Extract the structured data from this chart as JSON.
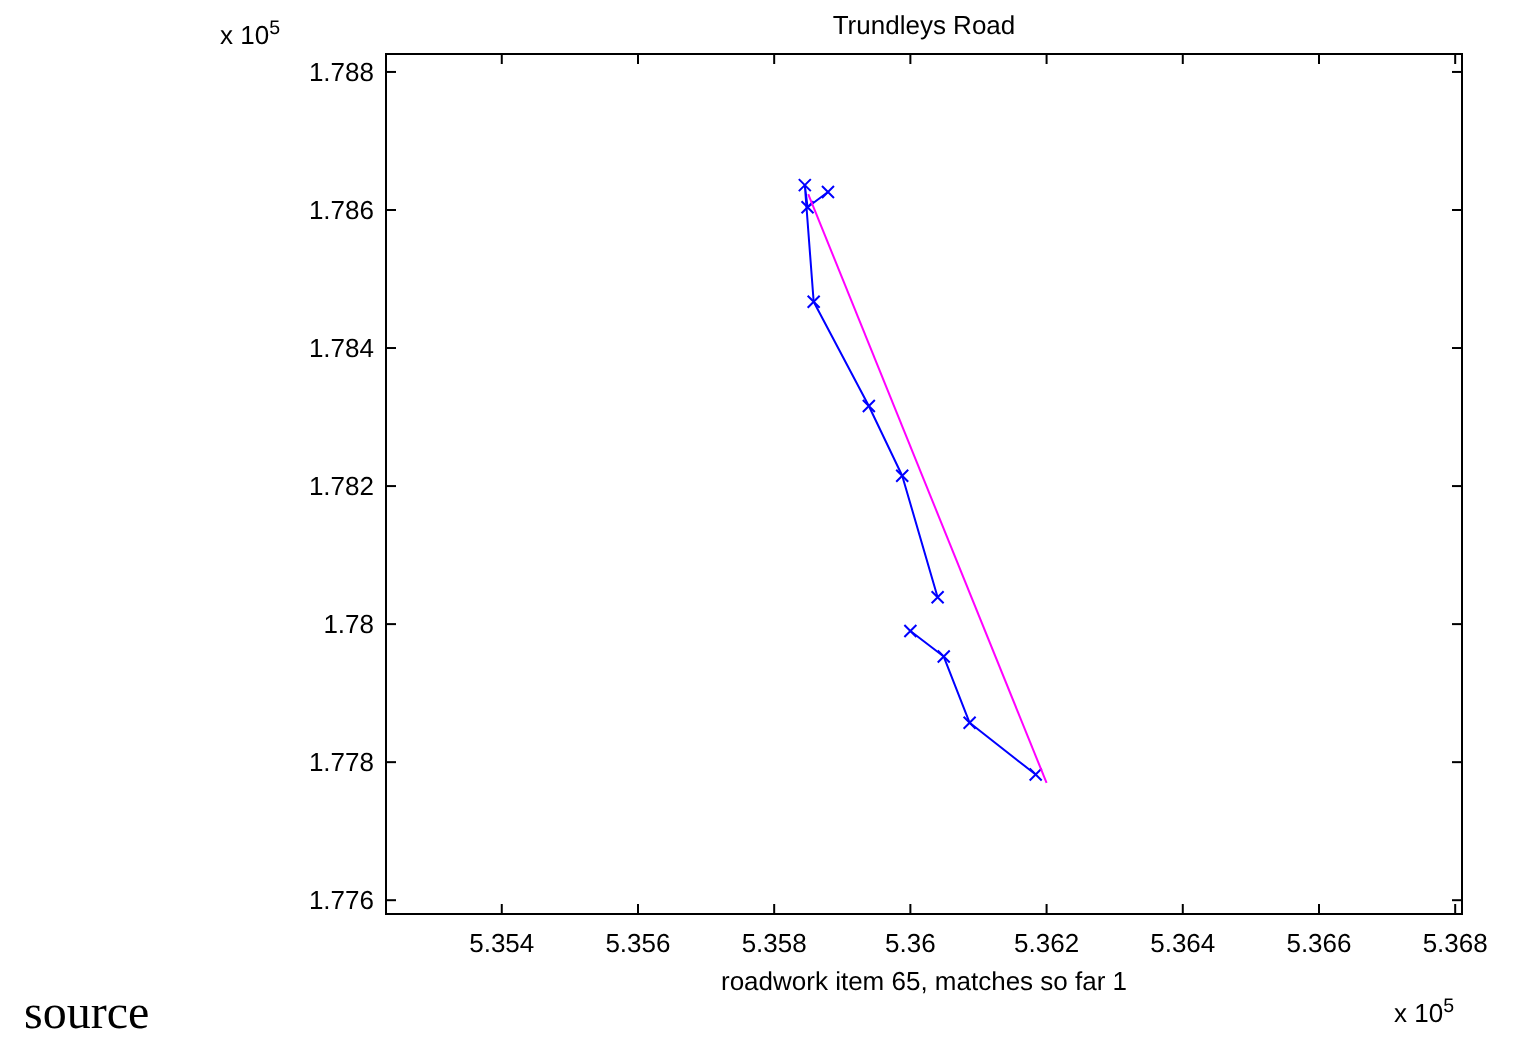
{
  "chart_data": {
    "type": "line",
    "title": "Trundleys Road",
    "xlabel": "roadwork item 65, matches so far 1",
    "annotations": [
      "x 10$^{5}$",
      "x 10$^{5}$",
      "source"
    ],
    "xlim": [
      5.3523,
      5.3681
    ],
    "ylim": [
      1.7758,
      1.78826
    ],
    "xticks": [
      5.354,
      5.356,
      5.358,
      5.36,
      5.362,
      5.364,
      5.366,
      5.368
    ],
    "yticks": [
      1.776,
      1.778,
      1.78,
      1.782,
      1.784,
      1.786,
      1.788
    ],
    "grid": false,
    "series": [
      {
        "color": "#0000ff",
        "marker": "cross",
        "line_style": "solid",
        "x": [
          5.35879,
          5.35849,
          5.35845,
          5.35858,
          5.35939,
          5.35988,
          5.3604,
          null,
          5.36,
          5.36049,
          5.36087,
          5.36184
        ],
        "values": [
          1.78626,
          1.78604,
          1.78636,
          1.78467,
          1.78316,
          1.78215,
          1.78039,
          null,
          1.7799,
          1.77953,
          1.77857,
          1.77782
        ]
      },
      {
        "color": "#ff00ff",
        "marker": "none",
        "line_style": "solid",
        "x": [
          5.3585,
          5.362
        ],
        "values": [
          1.78623,
          1.7777
        ]
      }
    ]
  }
}
